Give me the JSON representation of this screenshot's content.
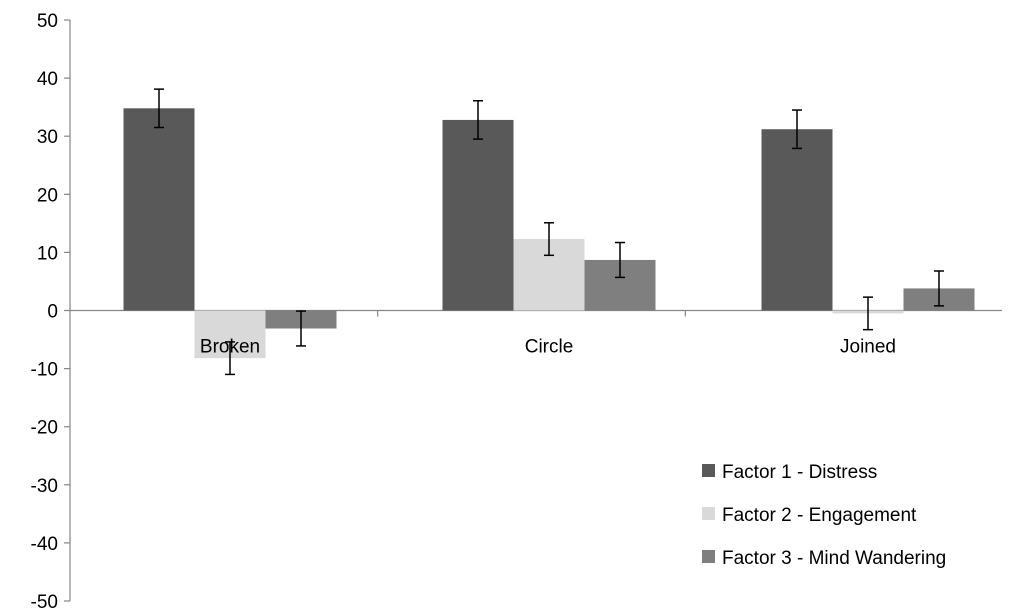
{
  "chart_data": {
    "type": "bar",
    "categories": [
      "Broken",
      "Circle",
      "Joined"
    ],
    "series": [
      {
        "name": "Factor 1 - Distress",
        "values": [
          34.8,
          32.8,
          31.2
        ],
        "errors": [
          3.3,
          3.3,
          3.3
        ],
        "color": "#595959"
      },
      {
        "name": "Factor 2 - Engagement",
        "values": [
          -8.2,
          12.3,
          -0.5
        ],
        "errors": [
          2.8,
          2.8,
          2.8
        ],
        "color": "#d9d9d9"
      },
      {
        "name": "Factor 3 - Mind Wandering",
        "values": [
          -3.1,
          8.7,
          3.8
        ],
        "errors": [
          3.0,
          3.0,
          3.0
        ],
        "color": "#7f7f7f"
      }
    ],
    "ylim": [
      -50,
      50
    ],
    "yticks": [
      "50",
      "40",
      "30",
      "20",
      "10",
      "0",
      "-10",
      "-20",
      "-30",
      "-40",
      "-50"
    ],
    "title": "",
    "xlabel": "",
    "ylabel": "",
    "legend_position": "bottom-right",
    "grid": false
  }
}
